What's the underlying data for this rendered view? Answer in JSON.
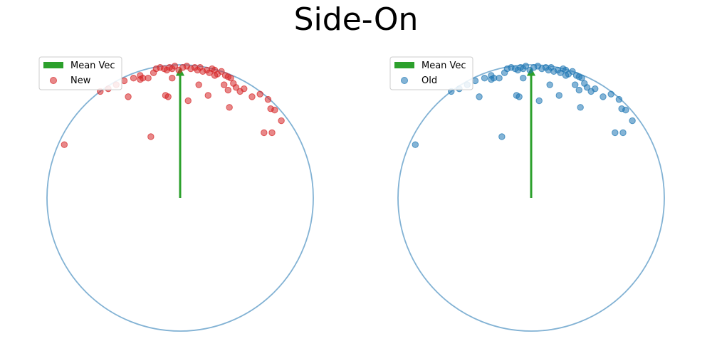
{
  "title": "Side-On",
  "colors": {
    "circle": "#82b2d4",
    "mean_vec": "#2ca02c",
    "new": "#d62728",
    "old": "#1f77b4"
  },
  "chart_data": [
    {
      "type": "scatter",
      "title": "",
      "xlim": [
        -1.0,
        1.0
      ],
      "ylim": [
        -1.0,
        1.0
      ],
      "grid": false,
      "axes_visible": false,
      "legend_position": "top-left",
      "legend": [
        "Mean Vec",
        "New"
      ],
      "circle": {
        "center": [
          0,
          0
        ],
        "radius": 1.0
      },
      "mean_vec": {
        "name": "Mean Vec",
        "from": [
          0,
          0
        ],
        "to": [
          0,
          0.96
        ]
      },
      "series": [
        {
          "name": "New",
          "points": [
            [
              -0.87,
              0.4
            ],
            [
              -0.6,
              0.8
            ],
            [
              -0.54,
              0.82
            ],
            [
              -0.48,
              0.85
            ],
            [
              -0.42,
              0.88
            ],
            [
              -0.39,
              0.76
            ],
            [
              -0.35,
              0.9
            ],
            [
              -0.3,
              0.92
            ],
            [
              -0.24,
              0.9
            ],
            [
              -0.22,
              0.46
            ],
            [
              -0.2,
              0.94
            ],
            [
              -0.18,
              0.97
            ],
            [
              -0.15,
              0.98
            ],
            [
              -0.12,
              0.97
            ],
            [
              -0.1,
              0.96
            ],
            [
              -0.08,
              0.98
            ],
            [
              -0.06,
              0.97
            ],
            [
              -0.04,
              0.99
            ],
            [
              -0.01,
              0.96
            ],
            [
              0.02,
              0.98
            ],
            [
              0.05,
              0.99
            ],
            [
              0.08,
              0.97
            ],
            [
              0.11,
              0.98
            ],
            [
              0.13,
              0.96
            ],
            [
              0.15,
              0.98
            ],
            [
              0.17,
              0.95
            ],
            [
              0.2,
              0.96
            ],
            [
              0.22,
              0.94
            ],
            [
              0.24,
              0.97
            ],
            [
              0.26,
              0.96
            ],
            [
              0.28,
              0.93
            ],
            [
              0.31,
              0.95
            ],
            [
              0.34,
              0.92
            ],
            [
              0.36,
              0.91
            ],
            [
              0.38,
              0.9
            ],
            [
              0.4,
              0.86
            ],
            [
              0.42,
              0.83
            ],
            [
              0.45,
              0.8
            ],
            [
              0.48,
              0.82
            ],
            [
              0.54,
              0.76
            ],
            [
              0.6,
              0.78
            ],
            [
              0.66,
              0.74
            ],
            [
              0.68,
              0.67
            ],
            [
              0.71,
              0.66
            ],
            [
              0.76,
              0.58
            ],
            [
              0.69,
              0.49
            ],
            [
              0.37,
              0.68
            ],
            [
              0.21,
              0.77
            ],
            [
              -0.11,
              0.77
            ],
            [
              -0.09,
              0.76
            ],
            [
              0.06,
              0.73
            ],
            [
              0.14,
              0.85
            ],
            [
              0.26,
              0.92
            ],
            [
              0.33,
              0.85
            ],
            [
              0.36,
              0.81
            ],
            [
              -0.06,
              0.9
            ],
            [
              -0.3,
              0.89
            ],
            [
              -0.28,
              0.9
            ],
            [
              0.63,
              0.49
            ]
          ]
        }
      ]
    },
    {
      "type": "scatter",
      "title": "",
      "xlim": [
        -1.0,
        1.0
      ],
      "ylim": [
        -1.0,
        1.0
      ],
      "grid": false,
      "axes_visible": false,
      "legend_position": "top-left",
      "legend": [
        "Mean Vec",
        "Old"
      ],
      "circle": {
        "center": [
          0,
          0
        ],
        "radius": 1.0
      },
      "mean_vec": {
        "name": "Mean Vec",
        "from": [
          0,
          0
        ],
        "to": [
          0,
          0.96
        ]
      },
      "series": [
        {
          "name": "Old",
          "points": [
            [
              -0.87,
              0.4
            ],
            [
              -0.6,
              0.8
            ],
            [
              -0.54,
              0.82
            ],
            [
              -0.48,
              0.85
            ],
            [
              -0.42,
              0.88
            ],
            [
              -0.39,
              0.76
            ],
            [
              -0.35,
              0.9
            ],
            [
              -0.3,
              0.92
            ],
            [
              -0.24,
              0.9
            ],
            [
              -0.22,
              0.46
            ],
            [
              -0.2,
              0.94
            ],
            [
              -0.18,
              0.97
            ],
            [
              -0.15,
              0.98
            ],
            [
              -0.12,
              0.97
            ],
            [
              -0.1,
              0.96
            ],
            [
              -0.08,
              0.98
            ],
            [
              -0.06,
              0.97
            ],
            [
              -0.04,
              0.99
            ],
            [
              -0.01,
              0.96
            ],
            [
              0.02,
              0.98
            ],
            [
              0.05,
              0.99
            ],
            [
              0.08,
              0.97
            ],
            [
              0.11,
              0.98
            ],
            [
              0.13,
              0.96
            ],
            [
              0.15,
              0.98
            ],
            [
              0.17,
              0.95
            ],
            [
              0.2,
              0.96
            ],
            [
              0.22,
              0.94
            ],
            [
              0.24,
              0.97
            ],
            [
              0.26,
              0.96
            ],
            [
              0.28,
              0.93
            ],
            [
              0.31,
              0.95
            ],
            [
              0.34,
              0.92
            ],
            [
              0.36,
              0.91
            ],
            [
              0.38,
              0.9
            ],
            [
              0.4,
              0.86
            ],
            [
              0.42,
              0.83
            ],
            [
              0.45,
              0.8
            ],
            [
              0.48,
              0.82
            ],
            [
              0.54,
              0.76
            ],
            [
              0.6,
              0.78
            ],
            [
              0.66,
              0.74
            ],
            [
              0.68,
              0.67
            ],
            [
              0.71,
              0.66
            ],
            [
              0.76,
              0.58
            ],
            [
              0.69,
              0.49
            ],
            [
              0.37,
              0.68
            ],
            [
              0.21,
              0.77
            ],
            [
              -0.11,
              0.77
            ],
            [
              -0.09,
              0.76
            ],
            [
              0.06,
              0.73
            ],
            [
              0.14,
              0.85
            ],
            [
              0.26,
              0.92
            ],
            [
              0.33,
              0.85
            ],
            [
              0.36,
              0.81
            ],
            [
              -0.06,
              0.9
            ],
            [
              -0.3,
              0.89
            ],
            [
              -0.28,
              0.9
            ],
            [
              0.63,
              0.49
            ]
          ]
        }
      ]
    }
  ]
}
